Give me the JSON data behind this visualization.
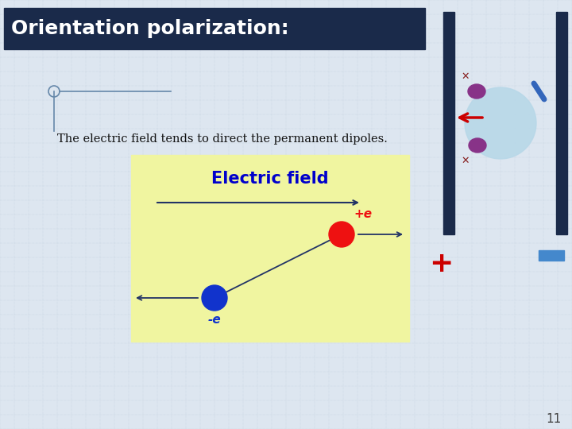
{
  "title": "Orientation polarization:",
  "title_bg": "#1a2a4a",
  "title_color": "#ffffff",
  "subtitle": "The electric field tends to direct the permanent dipoles.",
  "subtitle_color": "#111111",
  "bg_color": "#dde6f0",
  "grid_color": "#bccad8",
  "box_bg": "#f0f5a0",
  "box_title": "Electric field",
  "box_title_color": "#0000cc",
  "page_number": "11",
  "left_plate_color": "#1a2a4a",
  "right_plate_color": "#1a2a4a",
  "plus_color": "#cc0000",
  "minus_color": "#4488cc",
  "arrow_color": "#cc0000",
  "red_ball_color": "#ee1111",
  "blue_ball_color": "#1133cc",
  "dipole_line_color": "#223366",
  "top_arrow_color": "#223366",
  "small_circle_color": "#b8d8e8",
  "purple_blob_color": "#883388",
  "blue_tick_color": "#3366bb",
  "cross_color": "#882222"
}
